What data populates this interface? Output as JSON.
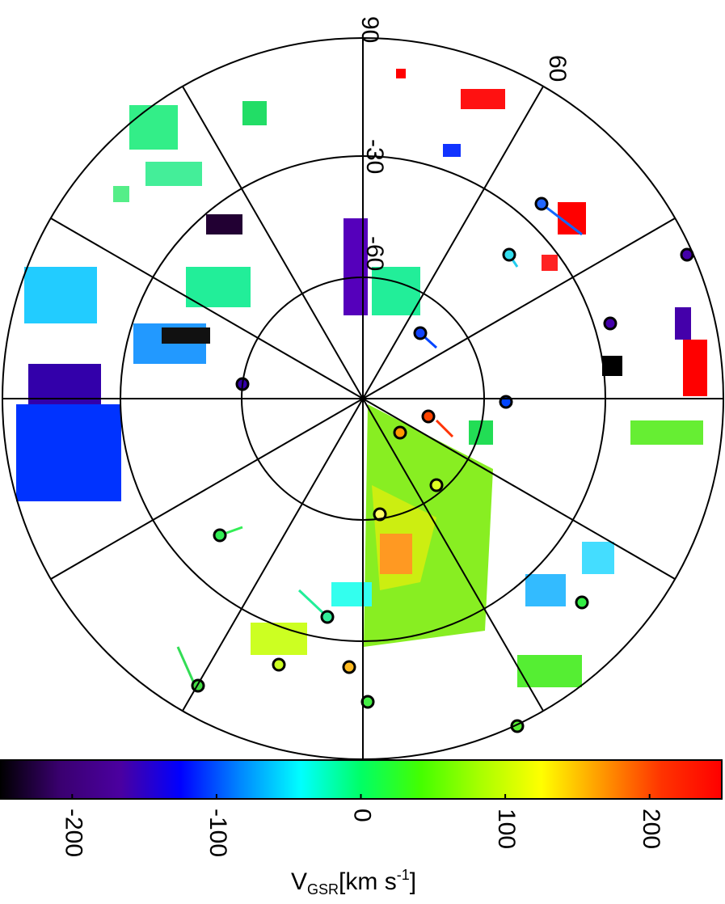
{
  "chart_data": {
    "type": "polar-map",
    "grid_labels": [
      "90",
      "60",
      "-30",
      "-60"
    ],
    "colorbar": {
      "clim": [
        -250,
        250
      ],
      "ticks": [
        -200,
        -100,
        0,
        100,
        200
      ],
      "colors": [
        "#000000",
        "#3a0070",
        "#4b00a0",
        "#0000ff",
        "#0088ff",
        "#00ffff",
        "#00ff66",
        "#44ff00",
        "#aaff00",
        "#ffff00",
        "#ff9900",
        "#ff3300",
        "#ff0000"
      ],
      "label": {
        "main": "V",
        "sub": "GSR",
        "unit": "[km s",
        "sup": "-1",
        "end": "]"
      }
    }
  }
}
